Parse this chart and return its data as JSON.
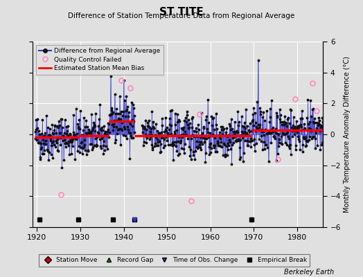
{
  "title": "ST TITE",
  "subtitle": "Difference of Station Temperature Data from Regional Average",
  "ylabel": "Monthly Temperature Anomaly Difference (°C)",
  "xlim": [
    1919,
    1986
  ],
  "ylim": [
    -6,
    6
  ],
  "yticks": [
    -6,
    -4,
    -2,
    0,
    2,
    4,
    6
  ],
  "xticks": [
    1920,
    1930,
    1940,
    1950,
    1960,
    1970,
    1980
  ],
  "bg_color": "#e0e0e0",
  "grid_color": "#ffffff",
  "line_color": "#3333cc",
  "dot_color": "#111111",
  "bias_color": "#ff0000",
  "qc_color": "#ff88bb",
  "watermark": "Berkeley Earth",
  "segments": [
    {
      "x_start": 1919.5,
      "x_end": 1929.5,
      "bias": -0.18
    },
    {
      "x_start": 1929.5,
      "x_end": 1936.5,
      "bias": -0.1
    },
    {
      "x_start": 1936.5,
      "x_end": 1942.5,
      "bias": 0.85
    },
    {
      "x_start": 1942.5,
      "x_end": 1969.5,
      "bias": -0.08
    },
    {
      "x_start": 1969.5,
      "x_end": 1986.0,
      "bias": 0.28
    }
  ],
  "empirical_breaks": [
    1920.5,
    1929.5,
    1937.5,
    1942.5,
    1969.5
  ],
  "time_of_obs_changes": [
    1942.5
  ],
  "station_moves": [],
  "record_gaps": [],
  "qc_failed_points": [
    [
      1925.5,
      -3.9
    ],
    [
      1939.5,
      3.5
    ],
    [
      1941.5,
      3.0
    ],
    [
      1955.5,
      -4.3
    ],
    [
      1957.5,
      1.3
    ],
    [
      1975.5,
      -1.6
    ],
    [
      1979.5,
      2.3
    ],
    [
      1983.5,
      3.3
    ],
    [
      1984.5,
      1.5
    ]
  ],
  "gap_start": 1942.5,
  "gap_end": 1944.2,
  "spike_1940": [
    1940.0,
    3.5
  ],
  "spike_1971": [
    1971.0,
    4.8
  ],
  "seed": 42
}
